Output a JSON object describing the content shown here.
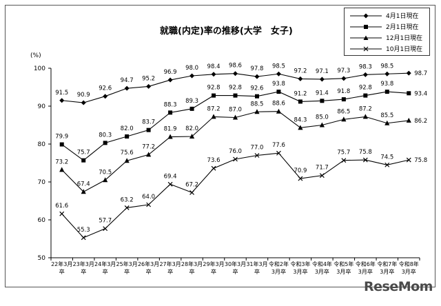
{
  "chart_data": {
    "type": "line",
    "title": "就職(内定)率の推移(大学　女子)",
    "unit": "(%)",
    "ylim": [
      50,
      100
    ],
    "yticks": [
      50,
      60,
      70,
      80,
      90,
      100
    ],
    "grid": false,
    "legend_position": "top-right",
    "categories": [
      [
        "22年3月",
        "卒"
      ],
      [
        "23年3月",
        "卒"
      ],
      [
        "24年3月",
        "卒"
      ],
      [
        "25年3月",
        "卒"
      ],
      [
        "26年3月",
        "卒"
      ],
      [
        "27年3月",
        "卒"
      ],
      [
        "28年3月",
        "卒"
      ],
      [
        "29年3月",
        "卒"
      ],
      [
        "30年3月",
        "卒"
      ],
      [
        "31年3月",
        "卒"
      ],
      [
        "令和2年",
        "3月卒"
      ],
      [
        "令和3年",
        "3月卒"
      ],
      [
        "令和4年",
        "3月卒"
      ],
      [
        "令和5年",
        "3月卒"
      ],
      [
        "令和6年",
        "3月卒"
      ],
      [
        "令和7年",
        "3月卒"
      ],
      [
        "令和8年",
        "3月卒"
      ]
    ],
    "series": [
      {
        "name": "4月1日現在",
        "marker": "diamond",
        "values": [
          91.5,
          90.9,
          92.6,
          94.7,
          95.2,
          96.9,
          98.0,
          98.4,
          98.6,
          97.8,
          98.5,
          97.2,
          97.1,
          97.3,
          98.3,
          98.5,
          98.7
        ]
      },
      {
        "name": "2月1日現在",
        "marker": "square",
        "values": [
          79.9,
          75.7,
          80.3,
          82.0,
          83.7,
          88.3,
          89.3,
          92.8,
          92.8,
          92.6,
          93.8,
          91.2,
          91.4,
          91.8,
          92.8,
          93.8,
          93.4
        ]
      },
      {
        "name": "12月1日現在",
        "marker": "triangle",
        "values": [
          73.2,
          67.4,
          70.5,
          75.6,
          77.2,
          81.9,
          82.0,
          87.2,
          87.0,
          88.5,
          88.6,
          84.3,
          85.0,
          86.5,
          87.2,
          85.5,
          86.2
        ]
      },
      {
        "name": "10月1日現在",
        "marker": "x",
        "values": [
          61.6,
          55.3,
          57.7,
          63.2,
          64.0,
          69.4,
          67.2,
          73.6,
          76.0,
          77.0,
          77.6,
          70.9,
          71.7,
          75.7,
          75.8,
          74.5,
          75.8
        ]
      }
    ]
  },
  "watermark": "ReseMom"
}
